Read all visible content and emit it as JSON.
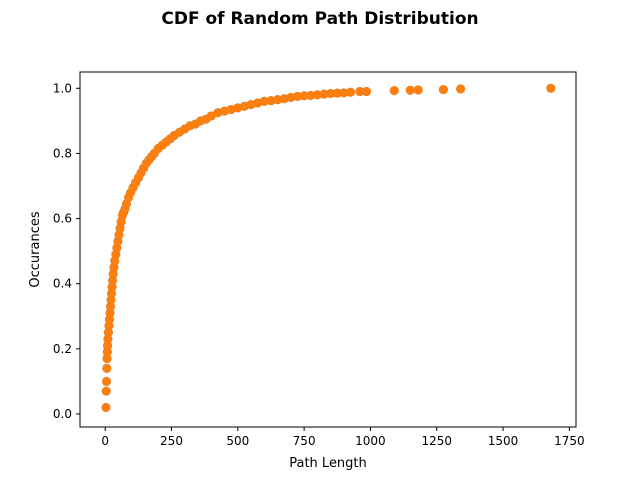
{
  "chart_data": {
    "type": "scatter",
    "title": "CDF of Random Path Distribution",
    "xlabel": "Path Length",
    "ylabel": "Occurances",
    "xlim": [
      -95,
      1775
    ],
    "ylim": [
      -0.04,
      1.05
    ],
    "xticks": [
      0,
      250,
      500,
      750,
      1000,
      1250,
      1500,
      1750
    ],
    "yticks": [
      0.0,
      0.2,
      0.4,
      0.6,
      0.8,
      1.0
    ],
    "xtick_labels": [
      "0",
      "250",
      "500",
      "750",
      "1000",
      "1250",
      "1500",
      "1750"
    ],
    "ytick_labels": [
      "0.0",
      "0.2",
      "0.4",
      "0.6",
      "0.8",
      "1.0"
    ],
    "grid": false,
    "legend": "none",
    "colors": {
      "marker": "#ff7f0e",
      "marker_under": "#1f77b4"
    },
    "series": [
      {
        "x": [
          3,
          4,
          5,
          6,
          7,
          8,
          9,
          10,
          12,
          14,
          16,
          18,
          20,
          22,
          24,
          26,
          28,
          30,
          33,
          36,
          40,
          44,
          48,
          52,
          56,
          60,
          65,
          70,
          75,
          80,
          88,
          96,
          105,
          115,
          125,
          135,
          145,
          155,
          165,
          175,
          185,
          200,
          215,
          230,
          245,
          260,
          280,
          300,
          320,
          340,
          360,
          380,
          400,
          425,
          450,
          475,
          500,
          525,
          550,
          575,
          600,
          625,
          650,
          675,
          700,
          725,
          750,
          775,
          800,
          825,
          850,
          875,
          900,
          925,
          960,
          985,
          1090,
          1150,
          1180,
          1275,
          1340,
          1680
        ],
        "y": [
          0.02,
          0.07,
          0.1,
          0.14,
          0.17,
          0.19,
          0.21,
          0.23,
          0.25,
          0.27,
          0.29,
          0.31,
          0.33,
          0.35,
          0.37,
          0.39,
          0.41,
          0.43,
          0.45,
          0.47,
          0.49,
          0.51,
          0.53,
          0.55,
          0.57,
          0.59,
          0.61,
          0.62,
          0.63,
          0.645,
          0.665,
          0.68,
          0.695,
          0.71,
          0.725,
          0.74,
          0.755,
          0.77,
          0.78,
          0.79,
          0.8,
          0.815,
          0.825,
          0.835,
          0.845,
          0.855,
          0.865,
          0.875,
          0.885,
          0.89,
          0.9,
          0.905,
          0.915,
          0.925,
          0.93,
          0.935,
          0.94,
          0.945,
          0.95,
          0.955,
          0.96,
          0.962,
          0.965,
          0.968,
          0.972,
          0.975,
          0.977,
          0.978,
          0.98,
          0.982,
          0.984,
          0.985,
          0.986,
          0.988,
          0.99,
          0.99,
          0.993,
          0.994,
          0.995,
          0.996,
          0.998,
          1.0
        ]
      }
    ]
  }
}
